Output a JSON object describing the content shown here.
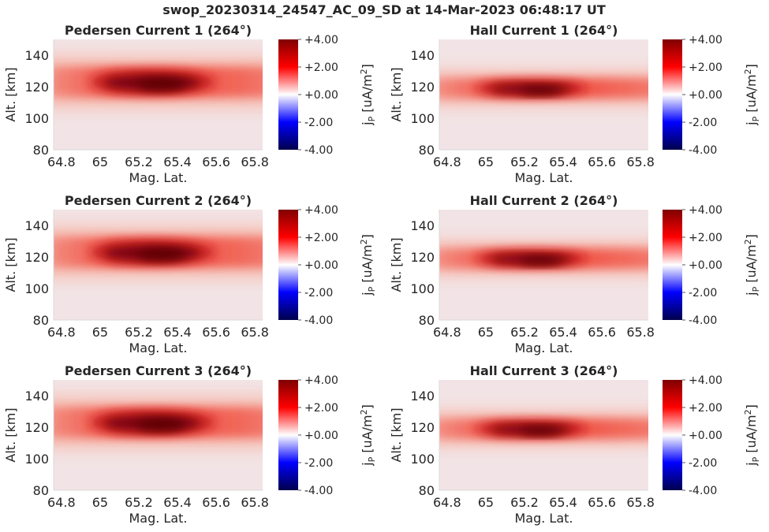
{
  "figure": {
    "suptitle": "swop_20230314_24547_AC_09_SD at 14-Mar-2023 06:48:17 UT"
  },
  "chart_data": [
    {
      "type": "heatmap",
      "title": "Pedersen Current 1 (264°)",
      "xlabel": "Mag. Lat.",
      "ylabel": "Alt. [km]",
      "colorbar_label": "j_P [uA/m^2]",
      "xlim": [
        64.76,
        65.84
      ],
      "ylim": [
        80,
        150
      ],
      "xticks": [
        "64.8",
        "65",
        "65.2",
        "65.4",
        "65.6",
        "65.8"
      ],
      "yticks": [
        "80",
        "100",
        "120",
        "140"
      ],
      "clim": [
        -4,
        4
      ],
      "colorbar_ticks": [
        "+4.00",
        "+2.00",
        "+0.00",
        "-2.00",
        "-4.00"
      ],
      "colormap": "seismic",
      "background_color": "#f2e4e6",
      "layer_center_km": 123,
      "layer_halfwidth_km": 9,
      "peak_value": 4.0,
      "core_range_lat": [
        65.02,
        65.52
      ]
    },
    {
      "type": "heatmap",
      "title": "Hall Current 1 (264°)",
      "xlabel": "Mag. Lat.",
      "ylabel": "Alt. [km]",
      "colorbar_label": "j_P [uA/m^2]",
      "xlim": [
        64.76,
        65.84
      ],
      "ylim": [
        80,
        150
      ],
      "xticks": [
        "64.8",
        "65",
        "65.2",
        "65.4",
        "65.6",
        "65.8"
      ],
      "yticks": [
        "80",
        "100",
        "120",
        "140"
      ],
      "clim": [
        -4,
        4
      ],
      "colorbar_ticks": [
        "+4.00",
        "+2.00",
        "+0.00",
        "-2.00",
        "-4.00"
      ],
      "colormap": "seismic",
      "background_color": "#f2e4e6",
      "layer_center_km": 119,
      "layer_halfwidth_km": 6,
      "peak_value": 4.0,
      "core_range_lat": [
        65.02,
        65.45
      ]
    },
    {
      "type": "heatmap",
      "title": "Pedersen Current 2 (264°)",
      "xlabel": "Mag. Lat.",
      "ylabel": "Alt. [km]",
      "colorbar_label": "j_P [uA/m^2]",
      "xlim": [
        64.76,
        65.84
      ],
      "ylim": [
        80,
        150
      ],
      "xticks": [
        "64.8",
        "65",
        "65.2",
        "65.4",
        "65.6",
        "65.8"
      ],
      "yticks": [
        "80",
        "100",
        "120",
        "140"
      ],
      "clim": [
        -4,
        4
      ],
      "colorbar_ticks": [
        "+4.00",
        "+2.00",
        "+0.00",
        "-2.00",
        "-4.00"
      ],
      "colormap": "seismic",
      "background_color": "#f2e4e6",
      "layer_center_km": 123,
      "layer_halfwidth_km": 9,
      "peak_value": 4.0,
      "core_range_lat": [
        65.02,
        65.52
      ]
    },
    {
      "type": "heatmap",
      "title": "Hall Current 2 (264°)",
      "xlabel": "Mag. Lat.",
      "ylabel": "Alt. [km]",
      "colorbar_label": "j_P [uA/m^2]",
      "xlim": [
        64.76,
        65.84
      ],
      "ylim": [
        80,
        150
      ],
      "xticks": [
        "64.8",
        "65",
        "65.2",
        "65.4",
        "65.6",
        "65.8"
      ],
      "yticks": [
        "80",
        "100",
        "120",
        "140"
      ],
      "clim": [
        -4,
        4
      ],
      "colorbar_ticks": [
        "+4.00",
        "+2.00",
        "+0.00",
        "-2.00",
        "-4.00"
      ],
      "colormap": "seismic",
      "background_color": "#f2e4e6",
      "layer_center_km": 119,
      "layer_halfwidth_km": 6,
      "peak_value": 4.0,
      "core_range_lat": [
        65.02,
        65.45
      ]
    },
    {
      "type": "heatmap",
      "title": "Pedersen Current 3 (264°)",
      "xlabel": "Mag. Lat.",
      "ylabel": "Alt. [km]",
      "colorbar_label": "j_P [uA/m^2]",
      "xlim": [
        64.76,
        65.84
      ],
      "ylim": [
        80,
        150
      ],
      "xticks": [
        "64.8",
        "65",
        "65.2",
        "65.4",
        "65.6",
        "65.8"
      ],
      "yticks": [
        "80",
        "100",
        "120",
        "140"
      ],
      "clim": [
        -4,
        4
      ],
      "colorbar_ticks": [
        "+4.00",
        "+2.00",
        "+0.00",
        "-2.00",
        "-4.00"
      ],
      "colormap": "seismic",
      "background_color": "#f2e4e6",
      "layer_center_km": 123,
      "layer_halfwidth_km": 9,
      "peak_value": 4.0,
      "core_range_lat": [
        65.02,
        65.52
      ]
    },
    {
      "type": "heatmap",
      "title": "Hall Current 3 (264°)",
      "xlabel": "Mag. Lat.",
      "ylabel": "Alt. [km]",
      "colorbar_label": "j_P [uA/m^2]",
      "xlim": [
        64.76,
        65.84
      ],
      "ylim": [
        80,
        150
      ],
      "xticks": [
        "64.8",
        "65",
        "65.2",
        "65.4",
        "65.6",
        "65.8"
      ],
      "yticks": [
        "80",
        "100",
        "120",
        "140"
      ],
      "clim": [
        -4,
        4
      ],
      "colorbar_ticks": [
        "+4.00",
        "+2.00",
        "+0.00",
        "-2.00",
        "-4.00"
      ],
      "colormap": "seismic",
      "background_color": "#f2e4e6",
      "layer_center_km": 119,
      "layer_halfwidth_km": 6,
      "peak_value": 4.0,
      "core_range_lat": [
        65.02,
        65.45
      ]
    }
  ]
}
